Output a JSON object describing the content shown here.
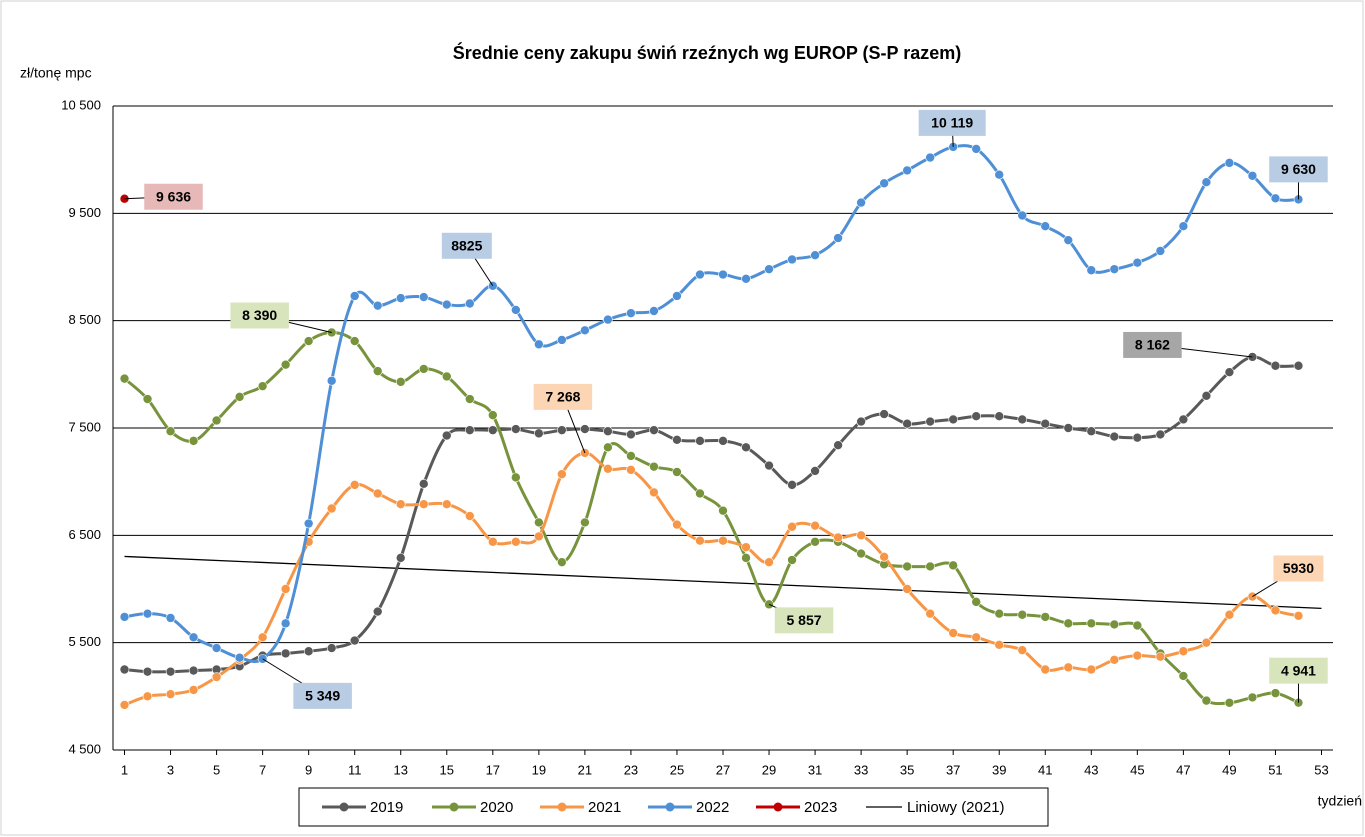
{
  "chart_data": {
    "type": "line",
    "title": "Średnie ceny zakupu świń rzeźnych wg EUROP (S-P razem)",
    "y_label": "zł/tonę mpc",
    "x_label": "tydzień",
    "x": [
      1,
      2,
      3,
      4,
      5,
      6,
      7,
      8,
      9,
      10,
      11,
      12,
      13,
      14,
      15,
      16,
      17,
      18,
      19,
      20,
      21,
      22,
      23,
      24,
      25,
      26,
      27,
      28,
      29,
      30,
      31,
      32,
      33,
      34,
      35,
      36,
      37,
      38,
      39,
      40,
      41,
      42,
      43,
      44,
      45,
      46,
      47,
      48,
      49,
      50,
      51,
      52
    ],
    "xlim": [
      0.5,
      53.5
    ],
    "xticks": [
      1,
      3,
      5,
      7,
      9,
      11,
      13,
      15,
      17,
      19,
      21,
      23,
      25,
      27,
      29,
      31,
      33,
      35,
      37,
      39,
      41,
      43,
      45,
      47,
      49,
      51,
      53
    ],
    "ylim": [
      4500,
      10500
    ],
    "yticks": [
      {
        "value": 4500,
        "label": "4 500"
      },
      {
        "value": 5500,
        "label": "5 500"
      },
      {
        "value": 6500,
        "label": "6 500"
      },
      {
        "value": 7500,
        "label": "7 500"
      },
      {
        "value": 8500,
        "label": "8 500"
      },
      {
        "value": 9500,
        "label": "9 500"
      },
      {
        "value": 10500,
        "label": "10 500"
      }
    ],
    "grid": true,
    "legend": "bottom",
    "series": [
      {
        "name": "2019",
        "color": "#595959",
        "label_color": "#a6a6a6",
        "values": [
          5250,
          5230,
          5230,
          5240,
          5250,
          5280,
          5380,
          5400,
          5420,
          5450,
          5520,
          5790,
          6290,
          6980,
          7430,
          7480,
          7480,
          7490,
          7450,
          7480,
          7490,
          7470,
          7440,
          7480,
          7390,
          7380,
          7380,
          7320,
          7150,
          6970,
          7100,
          7340,
          7560,
          7630,
          7540,
          7560,
          7580,
          7610,
          7610,
          7580,
          7540,
          7500,
          7470,
          7420,
          7410,
          7440,
          7580,
          7800,
          8020,
          8162,
          8080,
          8080
        ],
        "value_labels": [
          null,
          null,
          null,
          null,
          null,
          null,
          null,
          null,
          null,
          null,
          null,
          null,
          null,
          null,
          null,
          null,
          null,
          null,
          null,
          null,
          null,
          null,
          null,
          null,
          null,
          null,
          null,
          null,
          null,
          null,
          null,
          null,
          null,
          null,
          null,
          null,
          null,
          null,
          null,
          null,
          null,
          null,
          null,
          null,
          null,
          null,
          null,
          null,
          null,
          "8 162",
          null,
          null
        ]
      },
      {
        "name": "2020",
        "color": "#77933c",
        "label_color": "#d8e4bc",
        "values": [
          7960,
          7770,
          7470,
          7380,
          7570,
          7790,
          7890,
          8090,
          8310,
          8390,
          8310,
          8030,
          7930,
          8050,
          7980,
          7770,
          7620,
          7040,
          6620,
          6250,
          6620,
          7320,
          7240,
          7140,
          7090,
          6890,
          6730,
          6290,
          5857,
          6270,
          6440,
          6440,
          6330,
          6230,
          6210,
          6210,
          6220,
          5880,
          5770,
          5760,
          5740,
          5680,
          5680,
          5670,
          5660,
          5400,
          5190,
          4960,
          4940,
          4990,
          5030,
          4941
        ],
        "value_labels": [
          null,
          null,
          null,
          null,
          null,
          null,
          null,
          null,
          null,
          "8 390",
          null,
          null,
          null,
          null,
          null,
          null,
          null,
          null,
          null,
          null,
          null,
          null,
          null,
          null,
          null,
          null,
          null,
          null,
          "5 857",
          null,
          null,
          null,
          null,
          null,
          null,
          null,
          null,
          null,
          null,
          null,
          null,
          null,
          null,
          null,
          null,
          null,
          null,
          null,
          null,
          null,
          null,
          "4 941"
        ]
      },
      {
        "name": "2021",
        "color": "#f79646",
        "label_color": "#fcd5b4",
        "values": [
          4920,
          5000,
          5020,
          5060,
          5180,
          5340,
          5550,
          6000,
          6440,
          6750,
          6970,
          6890,
          6790,
          6790,
          6790,
          6680,
          6440,
          6440,
          6490,
          7070,
          7268,
          7120,
          7110,
          6900,
          6600,
          6450,
          6450,
          6390,
          6250,
          6580,
          6590,
          6480,
          6500,
          6300,
          6000,
          5770,
          5590,
          5550,
          5480,
          5430,
          5250,
          5270,
          5250,
          5340,
          5380,
          5370,
          5420,
          5500,
          5760,
          5930,
          5800,
          5750
        ],
        "value_labels": [
          null,
          null,
          null,
          null,
          null,
          null,
          null,
          null,
          null,
          null,
          null,
          null,
          null,
          null,
          null,
          null,
          null,
          null,
          null,
          null,
          "7 268",
          null,
          null,
          null,
          null,
          null,
          null,
          null,
          null,
          null,
          null,
          null,
          null,
          null,
          null,
          null,
          null,
          null,
          null,
          null,
          null,
          null,
          null,
          null,
          null,
          null,
          null,
          null,
          null,
          "5930",
          null,
          null
        ]
      },
      {
        "name": "2022",
        "color": "#4f8fd6",
        "label_color": "#b8cce4",
        "values": [
          5740,
          5770,
          5730,
          5550,
          5450,
          5360,
          5349,
          5680,
          6610,
          7940,
          8730,
          8640,
          8710,
          8720,
          8650,
          8660,
          8825,
          8600,
          8280,
          8320,
          8410,
          8510,
          8570,
          8590,
          8730,
          8930,
          8930,
          8890,
          8980,
          9070,
          9110,
          9270,
          9600,
          9780,
          9900,
          10020,
          10119,
          10100,
          9860,
          9480,
          9380,
          9250,
          8970,
          8980,
          9040,
          9150,
          9380,
          9790,
          9970,
          9850,
          9640,
          9630
        ],
        "value_labels": [
          null,
          null,
          null,
          null,
          null,
          null,
          "5 349",
          null,
          null,
          null,
          null,
          null,
          null,
          null,
          null,
          null,
          "8825",
          null,
          null,
          null,
          null,
          null,
          null,
          null,
          null,
          null,
          null,
          null,
          null,
          null,
          null,
          null,
          null,
          null,
          null,
          null,
          "10 119",
          null,
          null,
          null,
          null,
          null,
          null,
          null,
          null,
          null,
          null,
          null,
          null,
          null,
          null,
          "9 630"
        ]
      },
      {
        "name": "2023",
        "color": "#c00000",
        "label_color": "#e6b8b7",
        "values": [
          9636,
          null,
          null,
          null,
          null,
          null,
          null,
          null,
          null,
          null,
          null,
          null,
          null,
          null,
          null,
          null,
          null,
          null,
          null,
          null,
          null,
          null,
          null,
          null,
          null,
          null,
          null,
          null,
          null,
          null,
          null,
          null,
          null,
          null,
          null,
          null,
          null,
          null,
          null,
          null,
          null,
          null,
          null,
          null,
          null,
          null,
          null,
          null,
          null,
          null,
          null,
          null
        ],
        "value_labels": [
          "9 636",
          null,
          null,
          null,
          null,
          null,
          null,
          null,
          null,
          null,
          null,
          null,
          null,
          null,
          null,
          null,
          null,
          null,
          null,
          null,
          null,
          null,
          null,
          null,
          null,
          null,
          null,
          null,
          null,
          null,
          null,
          null,
          null,
          null,
          null,
          null,
          null,
          null,
          null,
          null,
          null,
          null,
          null,
          null,
          null,
          null,
          null,
          null,
          null,
          null,
          null,
          null
        ]
      }
    ],
    "trendline": {
      "name": "Liniowy (2021)",
      "of": "2021",
      "color": "#000000"
    }
  }
}
